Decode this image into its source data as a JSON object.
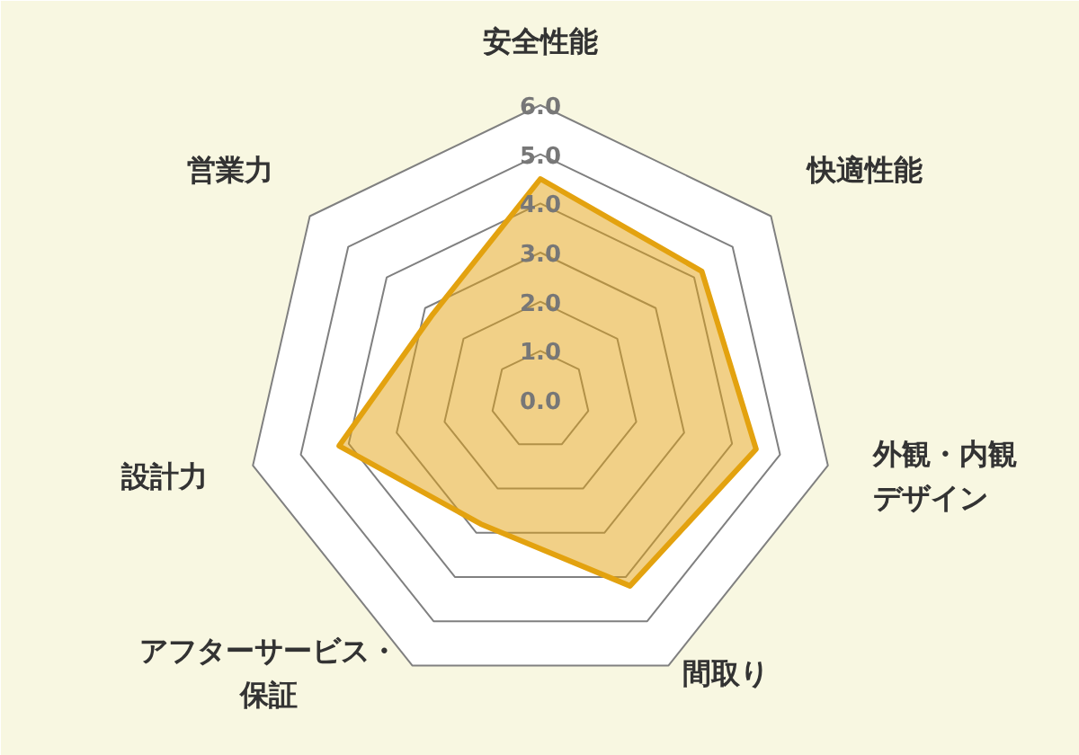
{
  "chart_data": {
    "type": "radar",
    "categories": [
      "安全性能",
      "快適性能",
      "外観・内観デザイン",
      "間取り",
      "アフターサービス・保証",
      "設計力",
      "営業力"
    ],
    "series": [
      {
        "color": "#e3a20f",
        "values": [
          4.5,
          4.2,
          4.5,
          4.2,
          2.8,
          4.2,
          2.8
        ]
      }
    ],
    "ylim": [
      0,
      6
    ],
    "yticks": [
      {
        "value": 0,
        "label": "0.0"
      },
      {
        "value": 1,
        "label": "1.0"
      },
      {
        "value": 2,
        "label": "2.0"
      },
      {
        "value": 3,
        "label": "3.0"
      },
      {
        "value": 4,
        "label": "4.0"
      },
      {
        "value": 5,
        "label": "5.0"
      },
      {
        "value": 6,
        "label": "6.0"
      }
    ],
    "grid": true
  }
}
